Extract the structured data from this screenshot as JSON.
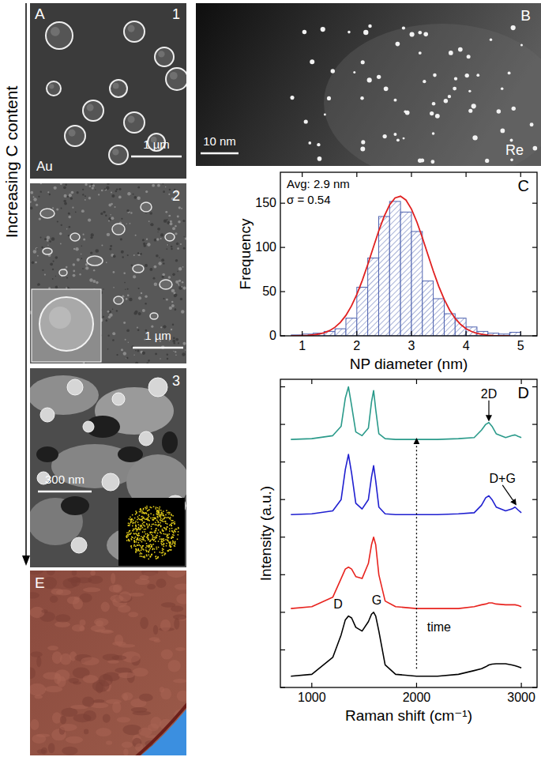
{
  "panels": {
    "side_label": "Increasing C content",
    "A": {
      "letter": "A",
      "images": [
        {
          "number": "1",
          "material": "Au",
          "scale_bar": "1 µm"
        },
        {
          "number": "2",
          "scale_bar": "1 µm"
        },
        {
          "number": "3",
          "scale_bar": "300 nm"
        }
      ]
    },
    "B": {
      "letter": "B",
      "scale_bar": "10 nm",
      "material": "Re"
    },
    "E": {
      "letter": "E"
    }
  },
  "chart_data": [
    {
      "type": "histogram",
      "panel_label": "C",
      "xlabel": "NP diameter (nm)",
      "ylabel": "Frequency",
      "bins": [
        0.8,
        1.0,
        1.2,
        1.4,
        1.6,
        1.8,
        2.0,
        2.2,
        2.4,
        2.6,
        2.8,
        3.0,
        3.2,
        3.4,
        3.6,
        3.8,
        4.0,
        4.2,
        4.4,
        4.6,
        4.8,
        5.0
      ],
      "values": [
        1,
        2,
        3,
        5,
        8,
        20,
        55,
        88,
        135,
        152,
        140,
        118,
        62,
        42,
        25,
        20,
        10,
        5,
        3,
        2,
        4
      ],
      "color": "#4f63b0",
      "xlim": [
        0.6,
        5.3
      ],
      "ylim": [
        0,
        185
      ],
      "xticks": [
        1,
        2,
        3,
        4,
        5
      ],
      "yticks": [
        0,
        50,
        100,
        150
      ],
      "annotations": [
        "Avg: 2.9 nm",
        "σ = 0.54"
      ],
      "fit": {
        "color": "#e02020",
        "x": [
          0.8,
          0.9,
          1.0,
          1.1,
          1.2,
          1.3,
          1.4,
          1.5,
          1.6,
          1.7,
          1.8,
          1.9,
          2.0,
          2.1,
          2.2,
          2.3,
          2.4,
          2.5,
          2.6,
          2.7,
          2.8,
          2.9,
          3.0,
          3.1,
          3.2,
          3.3,
          3.4,
          3.5,
          3.6,
          3.7,
          3.8,
          3.9,
          4.0,
          4.1,
          4.2,
          4.3,
          4.4,
          4.5,
          4.6,
          4.7,
          4.8
        ],
        "values": [
          0.1,
          0.1,
          0.3,
          0.6,
          1.1,
          2.0,
          3.5,
          5.9,
          9.7,
          15.3,
          23.1,
          33.6,
          46.8,
          62.7,
          80.6,
          99.7,
          118.4,
          135.0,
          148.1,
          156.0,
          157.9,
          153.5,
          143.4,
          128.7,
          111.0,
          92.0,
          73.3,
          56.0,
          41.2,
          29.1,
          19.7,
          12.9,
          8.1,
          4.9,
          2.8,
          1.6,
          0.8,
          0.4,
          0.2,
          0.1,
          0.1
        ]
      }
    },
    {
      "type": "line",
      "panel_label": "D",
      "xlabel": "Raman shift (cm⁻¹)",
      "ylabel": "Intensity (a.u.)",
      "x": [
        800,
        1000,
        1200,
        1280,
        1320,
        1350,
        1380,
        1420,
        1480,
        1540,
        1570,
        1590,
        1610,
        1640,
        1700,
        1800,
        2000,
        2200,
        2400,
        2550,
        2620,
        2660,
        2690,
        2720,
        2760,
        2850,
        2910,
        2940,
        2970,
        3000
      ],
      "series": [
        {
          "color": "#000000",
          "values": [
            0.3,
            0.35,
            0.8,
            1.4,
            1.8,
            1.9,
            1.85,
            1.6,
            1.5,
            1.75,
            1.95,
            2.0,
            1.9,
            1.5,
            0.6,
            0.35,
            0.3,
            0.3,
            0.35,
            0.45,
            0.5,
            0.55,
            0.6,
            0.62,
            0.63,
            0.63,
            0.6,
            0.58,
            0.55,
            0.52
          ]
        },
        {
          "color": "#e8231e",
          "values": [
            2.1,
            2.15,
            2.4,
            2.9,
            3.15,
            3.2,
            3.15,
            2.95,
            2.9,
            3.3,
            3.8,
            4.0,
            3.8,
            3.0,
            2.3,
            2.15,
            2.1,
            2.1,
            2.1,
            2.15,
            2.2,
            2.22,
            2.25,
            2.25,
            2.22,
            2.2,
            2.2,
            2.2,
            2.18,
            2.15
          ]
        },
        {
          "color": "#1f1fd0",
          "values": [
            4.6,
            4.62,
            4.7,
            5.0,
            5.8,
            6.2,
            5.7,
            4.9,
            4.75,
            5.0,
            5.6,
            5.9,
            5.5,
            4.8,
            4.62,
            4.6,
            4.6,
            4.6,
            4.62,
            4.65,
            4.85,
            5.05,
            5.1,
            5.0,
            4.8,
            4.7,
            4.75,
            4.8,
            4.72,
            4.65
          ]
        },
        {
          "color": "#2a9a8a",
          "values": [
            6.6,
            6.62,
            6.7,
            6.95,
            7.7,
            8.0,
            7.5,
            6.8,
            6.7,
            6.9,
            7.6,
            7.9,
            7.4,
            6.75,
            6.62,
            6.6,
            6.6,
            6.6,
            6.62,
            6.65,
            6.85,
            7.0,
            7.05,
            6.95,
            6.75,
            6.65,
            6.7,
            6.72,
            6.68,
            6.65
          ]
        }
      ],
      "xlim": [
        700,
        3150
      ],
      "ylim": [
        0,
        8.2
      ],
      "xticks": [
        1000,
        2000,
        3000
      ],
      "yticks": [
        0,
        1,
        2,
        3,
        4,
        5,
        6,
        7,
        8
      ],
      "tick_labels": "x",
      "annotations": [
        {
          "text": "D",
          "x": 1250,
          "y": 2.1
        },
        {
          "text": "G",
          "x": 1620,
          "y": 2.2
        },
        {
          "text": "D+G",
          "x": 2820,
          "y": 5.45,
          "arrow_to": [
            2945,
            4.88
          ]
        },
        {
          "text": "2D",
          "x": 2690,
          "y": 7.7,
          "arrow_to": [
            2690,
            7.12
          ]
        },
        {
          "text": "time",
          "x": 2100,
          "y": 1.5,
          "line": {
            "x": 2000,
            "y": [
              0.5,
              6.6
            ]
          }
        }
      ]
    }
  ]
}
